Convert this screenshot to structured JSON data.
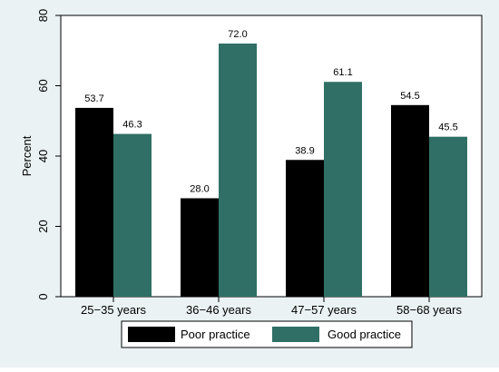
{
  "chart_data": {
    "type": "bar",
    "title": "",
    "xlabel": "",
    "ylabel": "Percent",
    "ylim": [
      0,
      80
    ],
    "yticks": [
      0,
      20,
      40,
      60,
      80
    ],
    "categories": [
      "25−35 years",
      "36−46 years",
      "47−57 years",
      "58−68 years"
    ],
    "series": [
      {
        "name": "Poor practice",
        "values": [
          53.7,
          28.0,
          38.9,
          54.5
        ],
        "labels": [
          "53.7",
          "28.0",
          "38.9",
          "54.5"
        ],
        "color": "#000000"
      },
      {
        "name": "Good practice",
        "values": [
          46.3,
          72.0,
          61.1,
          45.5
        ],
        "labels": [
          "46.3",
          "72.0",
          "61.1",
          "45.5"
        ],
        "color": "#2f6f66"
      }
    ],
    "grid": false,
    "legend_position": "bottom",
    "background_color": "#eaf2f3",
    "plot_background_color": "#ffffff"
  }
}
